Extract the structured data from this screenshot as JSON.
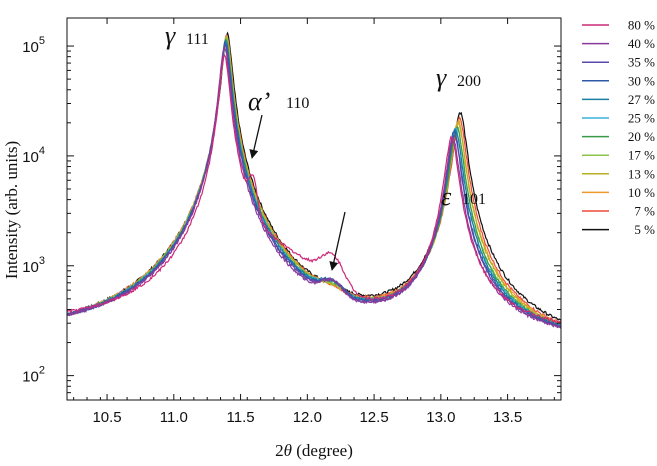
{
  "chart_data": {
    "type": "line",
    "xlabel_prefix": "2",
    "xlabel_theta": "θ",
    "xlabel_suffix": " (degree)",
    "ylabel": "Intensity  (arb. units)",
    "yscale": "log",
    "xlim": [
      10.2,
      13.9
    ],
    "ylim": [
      60,
      180000
    ],
    "x_ticks": [
      10.5,
      11.0,
      11.5,
      12.0,
      12.5,
      13.0,
      13.5
    ],
    "x_tick_labels": [
      "10.5",
      "11.0",
      "11.5",
      "12.0",
      "12.5",
      "13.0",
      "13.5"
    ],
    "y_ticks": [
      100,
      1000,
      10000,
      100000
    ],
    "y_tick_bases": [
      "10",
      "10",
      "10",
      "10"
    ],
    "y_tick_exps": [
      "2",
      "3",
      "4",
      "5"
    ],
    "grid": false,
    "legend_position": "right",
    "annotations": [
      {
        "symbol": "γ",
        "index": "111",
        "x": 11.38,
        "y": 90000
      },
      {
        "symbol": "α’",
        "index": "110",
        "x": 11.58,
        "y": 6000,
        "arrow": true
      },
      {
        "symbol": "ε",
        "index": "101",
        "x": 12.18,
        "y": 900,
        "arrow": true
      },
      {
        "symbol": "γ",
        "index": "200",
        "x": 13.12,
        "y": 15000
      }
    ],
    "series": [
      {
        "name": "80 %",
        "color": "#cc2a78",
        "baseline": 260,
        "p1": 80000,
        "p1x": 11.38,
        "p2": 14000,
        "p2x": 13.08,
        "eps": 700,
        "alpha": 3200
      },
      {
        "name": "40 %",
        "color": "#8a3a9c",
        "baseline": 215,
        "p1": 95000,
        "p1x": 11.38,
        "p2": 14000,
        "p2x": 13.09,
        "eps": 330,
        "alpha": 0
      },
      {
        "name": "35 %",
        "color": "#5a49a8",
        "baseline": 208,
        "p1": 100000,
        "p1x": 11.385,
        "p2": 15000,
        "p2x": 13.1,
        "eps": 315,
        "alpha": 0
      },
      {
        "name": "30 %",
        "color": "#2f5aa8",
        "baseline": 204,
        "p1": 105000,
        "p1x": 11.385,
        "p2": 16000,
        "p2x": 13.1,
        "eps": 300,
        "alpha": 0
      },
      {
        "name": "27 %",
        "color": "#1a7fa0",
        "baseline": 200,
        "p1": 108000,
        "p1x": 11.39,
        "p2": 16500,
        "p2x": 13.11,
        "eps": 285,
        "alpha": 0
      },
      {
        "name": "25 %",
        "color": "#3ab0d8",
        "baseline": 197,
        "p1": 110000,
        "p1x": 11.39,
        "p2": 17000,
        "p2x": 13.11,
        "eps": 270,
        "alpha": 0
      },
      {
        "name": "20 %",
        "color": "#3a9a4a",
        "baseline": 192,
        "p1": 112000,
        "p1x": 11.39,
        "p2": 17500,
        "p2x": 13.12,
        "eps": 245,
        "alpha": 0
      },
      {
        "name": "17 %",
        "color": "#8cc44a",
        "baseline": 188,
        "p1": 115000,
        "p1x": 11.39,
        "p2": 18000,
        "p2x": 13.12,
        "eps": 215,
        "alpha": 0
      },
      {
        "name": "13 %",
        "color": "#b8b020",
        "baseline": 184,
        "p1": 118000,
        "p1x": 11.395,
        "p2": 19000,
        "p2x": 13.13,
        "eps": 190,
        "alpha": 0
      },
      {
        "name": "10 %",
        "color": "#ee9a2a",
        "baseline": 181,
        "p1": 120000,
        "p1x": 11.395,
        "p2": 20000,
        "p2x": 13.13,
        "eps": 170,
        "alpha": 0
      },
      {
        "name": "7 %",
        "color": "#ee4a3a",
        "baseline": 178,
        "p1": 122000,
        "p1x": 11.395,
        "p2": 21000,
        "p2x": 13.14,
        "eps": 160,
        "alpha": 0
      },
      {
        "name": "5 %",
        "color": "#111111",
        "baseline": 175,
        "p1": 125000,
        "p1x": 11.4,
        "p2": 24000,
        "p2x": 13.145,
        "eps": 150,
        "alpha": 0
      }
    ]
  }
}
